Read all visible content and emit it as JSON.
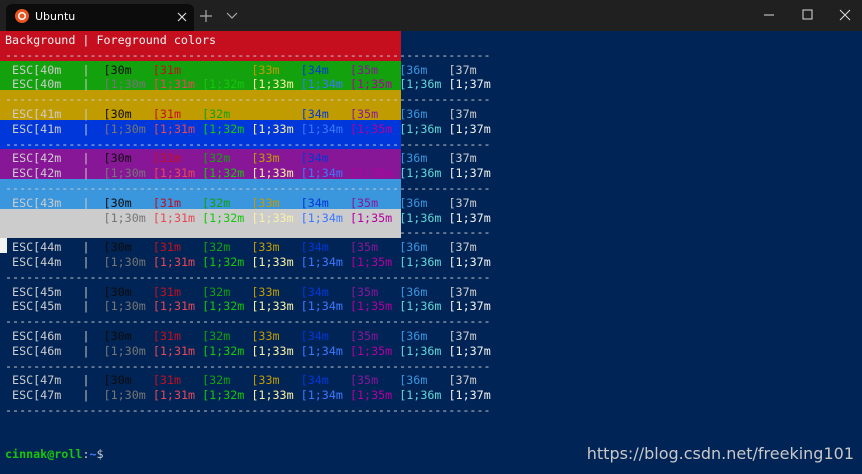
{
  "window": {
    "tab_title": "Ubuntu"
  },
  "terminal": {
    "header": "Background | Foreground colors",
    "separator": "---------------------------------------------------------------------",
    "divider": "|",
    "normal_codes": [
      "[30m",
      "[31m",
      "[32m",
      "[33m",
      "[34m",
      "[35m",
      "[36m",
      "[37m"
    ],
    "bold_codes": [
      "[1;30m",
      "[1;31m",
      "[1;32m",
      "[1;33m",
      "[1;34m",
      "[1;35m",
      "[1;36m",
      "[1;37m"
    ],
    "normal_colors": [
      "#0C0C0C",
      "#C50F1F",
      "#13A10E",
      "#C19C00",
      "#0037DA",
      "#881798",
      "#3A96DD",
      "#CCCCCC"
    ],
    "bold_colors": [
      "#767676",
      "#E74856",
      "#16C60C",
      "#F9F1A5",
      "#3B78FF",
      "#B4009E",
      "#61D6D6",
      "#F2F2F2"
    ],
    "blocks": [
      {
        "label": "ESC[40m",
        "background": null
      },
      {
        "label": "ESC[41m",
        "background": "#C50F1F"
      },
      {
        "label": "ESC[42m",
        "background": "#13A10E"
      },
      {
        "label": "ESC[43m",
        "background": "#C19C00"
      },
      {
        "label": "ESC[44m",
        "background": "#0037DA"
      },
      {
        "label": "ESC[45m",
        "background": "#881798"
      },
      {
        "label": "ESC[46m",
        "background": "#3A96DD"
      },
      {
        "label": "ESC[47m",
        "background": "#CCCCCC"
      }
    ],
    "prompt": {
      "user_host": "cinnak@roll",
      "separator": ":",
      "path": "~",
      "symbol": "$"
    }
  },
  "watermark": "https://blog.csdn.net/freeking101"
}
